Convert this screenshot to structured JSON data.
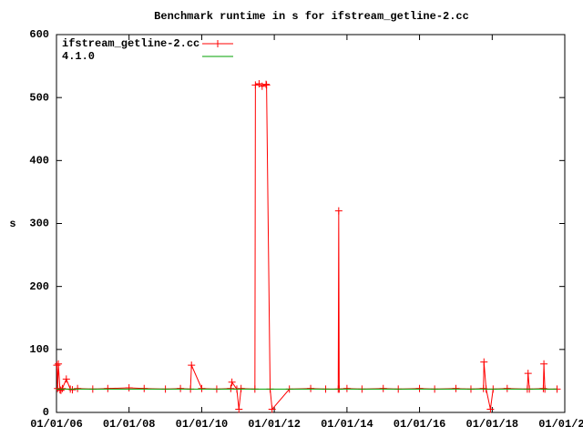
{
  "chart_data": {
    "type": "line",
    "title": "Benchmark runtime in s for ifstream_getline-2.cc",
    "y_label": "s",
    "xlim": [
      "01/01/06",
      "01/01/20"
    ],
    "xticks": [
      "01/01/06",
      "01/01/08",
      "01/01/10",
      "01/01/12",
      "01/01/14",
      "01/01/16",
      "01/01/18",
      "01/01/20"
    ],
    "ylim": [
      0,
      600
    ],
    "yticks": [
      0,
      100,
      200,
      300,
      400,
      500,
      600
    ],
    "grid": false,
    "legend": "top-left",
    "series": [
      {
        "name": "ifstream_getline-2.cc",
        "color": "#ff0000",
        "marker": "+",
        "x": [
          "01/05/06",
          "01/12/06",
          "01/20/06",
          "02/05/06",
          "02/15/06",
          "03/01/06",
          "04/10/06",
          "05/20/06",
          "06/10/06",
          "08/01/06",
          "01/01/07",
          "06/01/07",
          "01/01/08",
          "06/01/08",
          "01/01/09",
          "06/01/09",
          "09/10/09",
          "09/20/09",
          "01/01/10",
          "06/01/10",
          "10/20/10",
          "11/01/10",
          "12/20/10",
          "01/10/11",
          "02/01/11",
          "06/20/11",
          "06/25/11",
          "08/01/11",
          "09/01/11",
          "10/10/11",
          "10/15/11",
          "11/20/11",
          "12/10/11",
          "06/01/12",
          "01/01/13",
          "06/01/13",
          "10/05/13",
          "10/10/13",
          "10/15/13",
          "01/01/14",
          "06/01/14",
          "01/01/15",
          "06/01/15",
          "01/01/16",
          "06/01/16",
          "01/01/17",
          "06/01/17",
          "10/05/17",
          "10/10/17",
          "11/01/17",
          "12/14/17",
          "01/10/18",
          "06/01/18",
          "12/20/18",
          "12/28/18",
          "01/10/19",
          "05/30/19",
          "06/05/19",
          "06/15/19",
          "10/15/19"
        ],
        "values": [
          75,
          38,
          77,
          36,
          35,
          38,
          53,
          37,
          36,
          38,
          37,
          38,
          39,
          38,
          37,
          38,
          37,
          75,
          38,
          37,
          38,
          48,
          37,
          5,
          38,
          37,
          520,
          522,
          518,
          521,
          520,
          37,
          5,
          37,
          38,
          37,
          37,
          320,
          37,
          38,
          37,
          38,
          37,
          38,
          37,
          38,
          37,
          38,
          80,
          37,
          5,
          37,
          38,
          37,
          62,
          37,
          38,
          77,
          37,
          37
        ]
      },
      {
        "name": "4.1.0",
        "color": "#00a000",
        "x": [
          "01/01/06",
          "10/15/19"
        ],
        "values": [
          37,
          37
        ]
      }
    ]
  }
}
